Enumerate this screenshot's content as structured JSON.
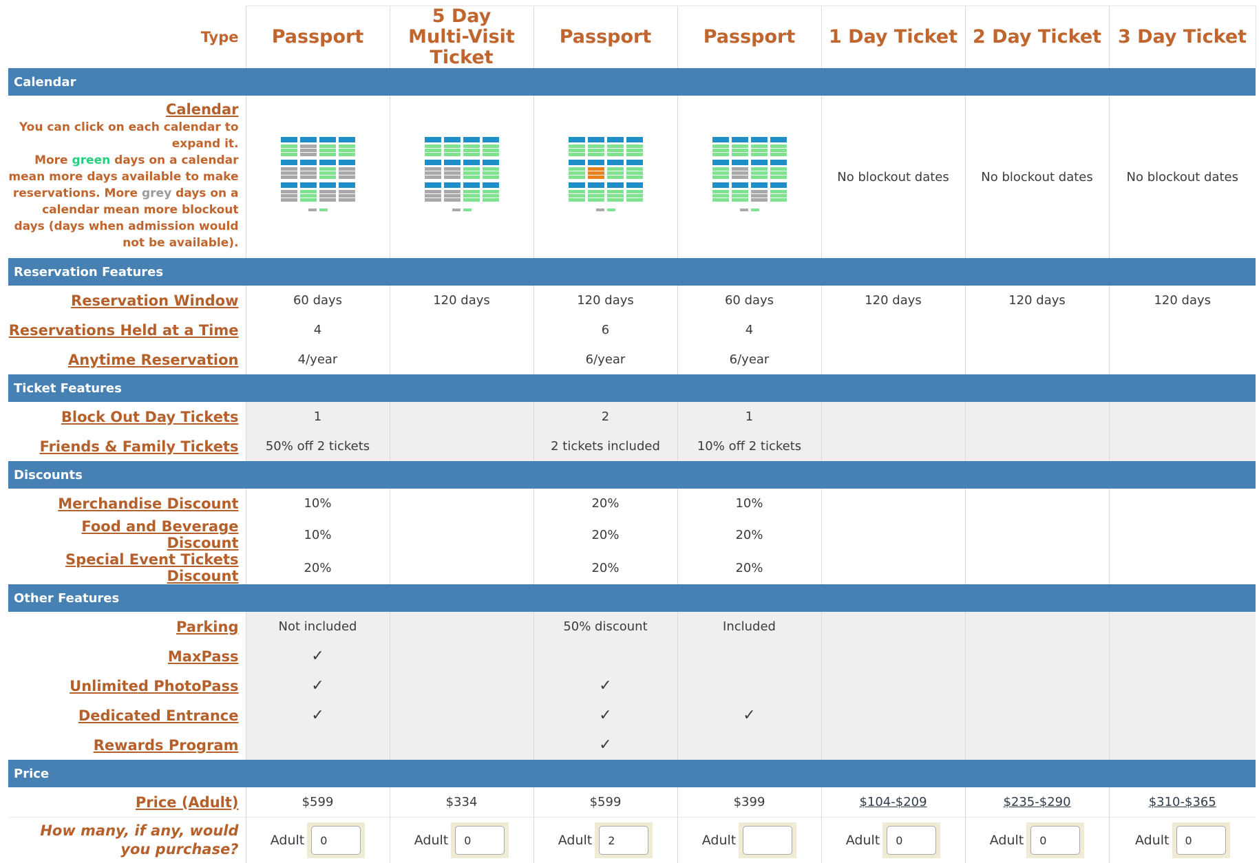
{
  "header": {
    "type_label": "Type",
    "columns": [
      "Passport",
      "5 Day Multi-Visit Ticket",
      "Passport",
      "Passport",
      "1 Day Ticket",
      "2 Day Ticket",
      "3 Day Ticket"
    ]
  },
  "sections": {
    "calendar": "Calendar",
    "reservation": "Reservation Features",
    "ticket": "Ticket Features",
    "discounts": "Discounts",
    "other": "Other Features",
    "price": "Price"
  },
  "calendar": {
    "link": "Calendar",
    "note_1": "You can click on each calendar to expand it.",
    "note_2a": "More ",
    "green_word": "green",
    "note_2b": " days on a calendar mean more days available to make reservations. More ",
    "grey_word": "grey",
    "note_2c": " days on a calendar mean more blockout days (days when admission would not be available).",
    "no_blockout": "No blockout dates",
    "colors": {
      "header": "#1f8fc9",
      "available": "#7fe28f",
      "blocked": "#a9a9a9",
      "special": "#e8821e"
    }
  },
  "reservation": {
    "window_label": "Reservation Window",
    "window": [
      "60 days",
      "120 days",
      "120 days",
      "60 days",
      "120 days",
      "120 days",
      "120 days"
    ],
    "held_label": "Reservations Held at a Time",
    "held": [
      "4",
      "",
      "6",
      "4",
      "",
      "",
      ""
    ],
    "anytime_label": "Anytime Reservation",
    "anytime": [
      "4/year",
      "",
      "6/year",
      "6/year",
      "",
      "",
      ""
    ]
  },
  "ticket": {
    "blockout_label": "Block Out Day Tickets",
    "blockout": [
      "1",
      "",
      "2",
      "1",
      "",
      "",
      ""
    ],
    "friends_label": "Friends & Family Tickets",
    "friends": [
      "50% off 2 tickets",
      "",
      "2 tickets included",
      "10% off 2 tickets",
      "",
      "",
      ""
    ]
  },
  "discounts": {
    "merch_label": "Merchandise Discount",
    "merch": [
      "10%",
      "",
      "20%",
      "10%",
      "",
      "",
      ""
    ],
    "food_label": "Food and Beverage Discount",
    "food": [
      "10%",
      "",
      "20%",
      "20%",
      "",
      "",
      ""
    ],
    "special_label": "Special Event Tickets Discount",
    "special": [
      "20%",
      "",
      "20%",
      "20%",
      "",
      "",
      ""
    ]
  },
  "other": {
    "parking_label": "Parking",
    "parking": [
      "Not included",
      "",
      "50% discount",
      "Included",
      "",
      "",
      ""
    ],
    "check": "✓",
    "maxpass_label": "MaxPass",
    "photopass_label": "Unlimited PhotoPass",
    "entrance_label": "Dedicated Entrance",
    "rewards_label": "Rewards Program"
  },
  "price": {
    "adult_label": "Price (Adult)",
    "values": [
      "$599",
      "$334",
      "$599",
      "$399",
      "$104-$209",
      "$235-$290",
      "$310-$365"
    ],
    "question": "How many, if any, would you purchase?",
    "adult": "Adult",
    "quantities": [
      "0",
      "0",
      "2",
      "",
      "0",
      "0",
      "0"
    ]
  }
}
